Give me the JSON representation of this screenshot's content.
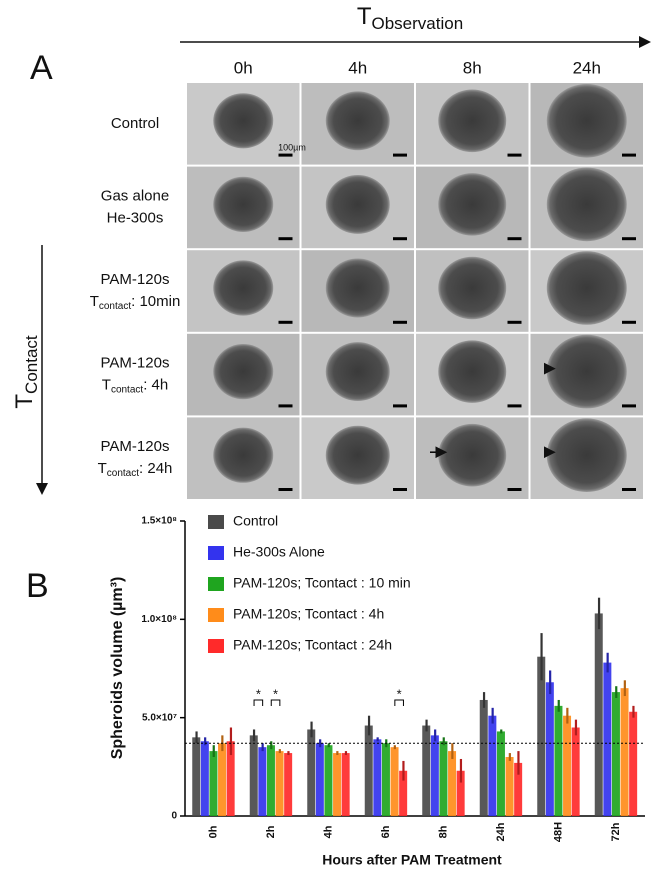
{
  "panel_a": {
    "label": "A",
    "t_observation": {
      "base": "T",
      "sub": "Observation"
    },
    "t_contact": {
      "base": "T",
      "sub": "Contact"
    },
    "columns": [
      "0h",
      "4h",
      "8h",
      "24h"
    ],
    "rows": [
      {
        "line1": "Control"
      },
      {
        "line1": "Gas alone",
        "line2": "He-300s"
      },
      {
        "line1": "PAM-120s",
        "line2_base": "T",
        "line2_sub": "contact",
        "line2_suffix": ": 10min"
      },
      {
        "line1": "PAM-120s",
        "line2_base": "T",
        "line2_sub": "contact",
        "line2_suffix": ": 4h"
      },
      {
        "line1": "PAM-120s",
        "line2_base": "T",
        "line2_sub": "contact",
        "line2_suffix": ": 24h"
      }
    ],
    "scale_bar": "100µm"
  },
  "chart_data": {
    "type": "bar",
    "panel_label": "B",
    "x_label": "Hours after PAM Treatment",
    "y_label": "Spheroids volume (µm³)",
    "categories": [
      "0h",
      "2h",
      "4h",
      "6h",
      "8h",
      "24h",
      "48H",
      "72h"
    ],
    "series": [
      {
        "name": "Control",
        "color": "#4a4a4a",
        "values": [
          40000000,
          41000000,
          44000000,
          46000000,
          46000000,
          59000000,
          81000000,
          103000000
        ],
        "errors": [
          3000000,
          3000000,
          4000000,
          5000000,
          3000000,
          4000000,
          12000000,
          8000000
        ]
      },
      {
        "name": "He-300s Alone",
        "color": "#3333ee",
        "values": [
          38000000,
          35000000,
          37000000,
          39000000,
          41000000,
          51000000,
          68000000,
          78000000
        ],
        "errors": [
          2000000,
          2000000,
          2000000,
          1000000,
          3000000,
          4000000,
          6000000,
          5000000
        ]
      },
      {
        "name": "PAM-120s; Tcontact : 10 min",
        "color": "#1fa51f",
        "values": [
          33000000,
          36000000,
          36000000,
          37000000,
          38000000,
          43000000,
          56000000,
          63000000
        ],
        "errors": [
          3000000,
          2000000,
          1000000,
          2000000,
          2000000,
          1000000,
          3000000,
          3000000
        ]
      },
      {
        "name": "PAM-120s; Tcontact : 4h",
        "color": "#ff8c1a",
        "values": [
          37000000,
          33000000,
          32000000,
          35000000,
          33000000,
          30000000,
          51000000,
          65000000
        ],
        "errors": [
          4000000,
          1000000,
          1000000,
          1000000,
          4000000,
          2000000,
          4000000,
          4000000
        ]
      },
      {
        "name": "PAM-120s; Tcontact : 24h",
        "color": "#ff2a2a",
        "values": [
          38000000,
          32000000,
          32000000,
          23000000,
          23000000,
          27000000,
          45000000,
          53000000
        ],
        "errors": [
          7000000,
          1000000,
          1000000,
          5000000,
          6000000,
          6000000,
          4000000,
          3000000
        ]
      }
    ],
    "ylim": [
      0,
      150000000
    ],
    "yticks": [
      0,
      {
        "value": 50000000,
        "label": "5.0×10⁷"
      },
      {
        "value": 100000000,
        "label": "1.0×10⁸"
      },
      {
        "value": 150000000,
        "label": "1.5×10⁸"
      }
    ],
    "reference_line": 37000000,
    "significance": [
      "*",
      "*",
      "*"
    ]
  }
}
